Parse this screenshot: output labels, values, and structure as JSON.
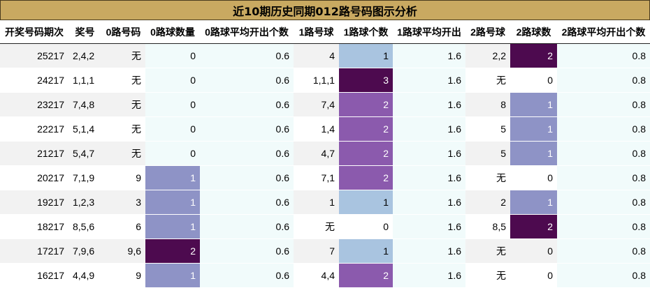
{
  "title": "近10期历史同期012路号码图示分析",
  "chart_data": {
    "type": "table",
    "columns": [
      "开奖号码期次",
      "奖号",
      "0路号码",
      "0路球数量",
      "0路球平均开出个数",
      "1路号球",
      "1路球个数",
      "1路球平均开出",
      "2路号球",
      "2路球数",
      "2路球平均开出个数"
    ],
    "rows": [
      [
        "25217",
        "2,4,2",
        "无",
        "0",
        "0.6",
        "4",
        "1",
        "1.6",
        "2,2",
        "2",
        "0.8"
      ],
      [
        "24217",
        "1,1,1",
        "无",
        "0",
        "0.6",
        "1,1,1",
        "3",
        "1.6",
        "无",
        "0",
        "0.8"
      ],
      [
        "23217",
        "7,4,8",
        "无",
        "0",
        "0.6",
        "7,4",
        "2",
        "1.6",
        "8",
        "1",
        "0.8"
      ],
      [
        "22217",
        "5,1,4",
        "无",
        "0",
        "0.6",
        "1,4",
        "2",
        "1.6",
        "5",
        "1",
        "0.8"
      ],
      [
        "21217",
        "5,4,7",
        "无",
        "0",
        "0.6",
        "4,7",
        "2",
        "1.6",
        "5",
        "1",
        "0.8"
      ],
      [
        "20217",
        "7,1,9",
        "9",
        "1",
        "0.6",
        "7,1",
        "2",
        "1.6",
        "无",
        "0",
        "0.8"
      ],
      [
        "19217",
        "1,2,3",
        "3",
        "1",
        "0.6",
        "1",
        "1",
        "1.6",
        "2",
        "1",
        "0.8"
      ],
      [
        "18217",
        "8,5,6",
        "6",
        "1",
        "0.6",
        "无",
        "0",
        "1.6",
        "8,5",
        "2",
        "0.8"
      ],
      [
        "17217",
        "7,9,6",
        "9,6",
        "2",
        "0.6",
        "7",
        "1",
        "1.6",
        "无",
        "0",
        "0.8"
      ],
      [
        "16217",
        "4,4,9",
        "9",
        "1",
        "0.6",
        "4,4",
        "2",
        "1.6",
        "无",
        "0",
        "0.8"
      ]
    ]
  }
}
